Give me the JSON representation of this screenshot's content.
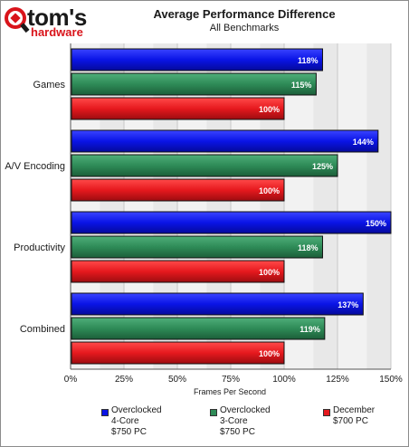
{
  "header": {
    "logo_main": "tom's",
    "logo_sub": "hardware",
    "title": "Average Performance Difference",
    "subtitle": "All Benchmarks"
  },
  "colors": {
    "series_blue": "#0a14e6",
    "series_green": "#2e8b57",
    "series_red": "#e6191e",
    "plot_bg": "#f2f2f2",
    "plot_band": "#e0e0e0",
    "grid": "#c8c8c8"
  },
  "chart_data": {
    "type": "bar",
    "orientation": "horizontal",
    "title": "Average Performance Difference",
    "subtitle": "All Benchmarks",
    "xlabel": "Frames Per Second",
    "ylabel": "",
    "xlim": [
      0,
      150
    ],
    "x_ticks": [
      "0%",
      "25%",
      "50%",
      "75%",
      "100%",
      "125%",
      "150%"
    ],
    "grid": true,
    "legend_position": "bottom",
    "categories": [
      "Games",
      "A/V Encoding",
      "Productivity",
      "Combined"
    ],
    "series": [
      {
        "name": "Overclocked\n4-Core\n$750 PC",
        "color": "#0a14e6",
        "values": [
          118,
          144,
          150,
          137
        ],
        "labels": [
          "118%",
          "144%",
          "150%",
          "137%"
        ]
      },
      {
        "name": "Overclocked\n3-Core\n$750 PC",
        "color": "#2e8b57",
        "values": [
          115,
          125,
          118,
          119
        ],
        "labels": [
          "115%",
          "125%",
          "118%",
          "119%"
        ]
      },
      {
        "name": "December\n$700 PC",
        "color": "#e6191e",
        "values": [
          100,
          100,
          100,
          100
        ],
        "labels": [
          "100%",
          "100%",
          "100%",
          "100%"
        ]
      }
    ]
  }
}
